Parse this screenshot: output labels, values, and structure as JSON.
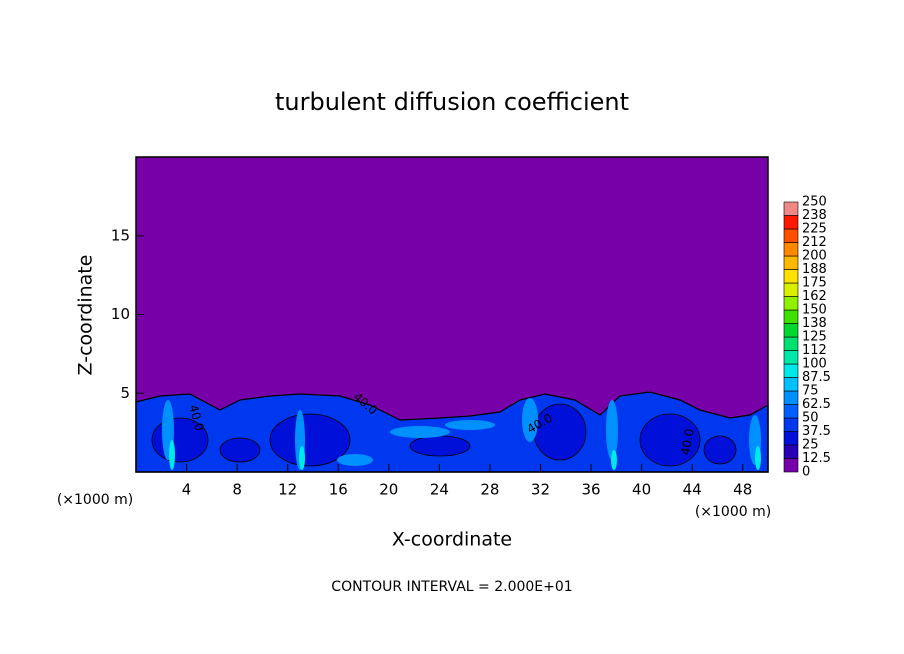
{
  "chart_data": {
    "type": "contour",
    "title": "turbulent diffusion coefficient",
    "x_label": "X-coordinate",
    "y_label": "Z-coordinate",
    "x_unit": "(×1000 m)",
    "annotation": "CONTOUR INTERVAL = 2.000E+01",
    "xlim": [
      0,
      50
    ],
    "ylim": [
      0,
      20
    ],
    "xticks": [
      4,
      8,
      12,
      16,
      20,
      24,
      28,
      32,
      36,
      40,
      44,
      48
    ],
    "yticks": [
      5,
      10,
      15
    ],
    "colorbar": {
      "levels": [
        0,
        12.5,
        25,
        37.5,
        50,
        62.5,
        75,
        87.5,
        100,
        {
          "value": 112.5,
          "label": "112"
        },
        125,
        {
          "value": 137.5,
          "label": "138"
        },
        150,
        {
          "value": 162.5,
          "label": "162"
        },
        175,
        {
          "value": 187.5,
          "label": "188"
        },
        200,
        {
          "value": 212.5,
          "label": "212"
        },
        225,
        {
          "value": 237.5,
          "label": "238"
        },
        250
      ],
      "colors": [
        "#7800a8",
        "#2800b8",
        "#0010d8",
        "#0038f0",
        "#0060ff",
        "#0090ff",
        "#00c0ff",
        "#00e8e8",
        "#00e8a8",
        "#00e070",
        "#00d830",
        "#40e000",
        "#90f000",
        "#d8f000",
        "#ffe000",
        "#ffb800",
        "#ff8800",
        "#ff5000",
        "#ff1800",
        "#f08888"
      ]
    },
    "contour_labels": [
      {
        "value": 40,
        "label": "40.0"
      },
      {
        "value": 40,
        "label": "40.0"
      },
      {
        "value": 40,
        "label": "40.0"
      },
      {
        "value": 40,
        "label": "40.0"
      }
    ]
  }
}
